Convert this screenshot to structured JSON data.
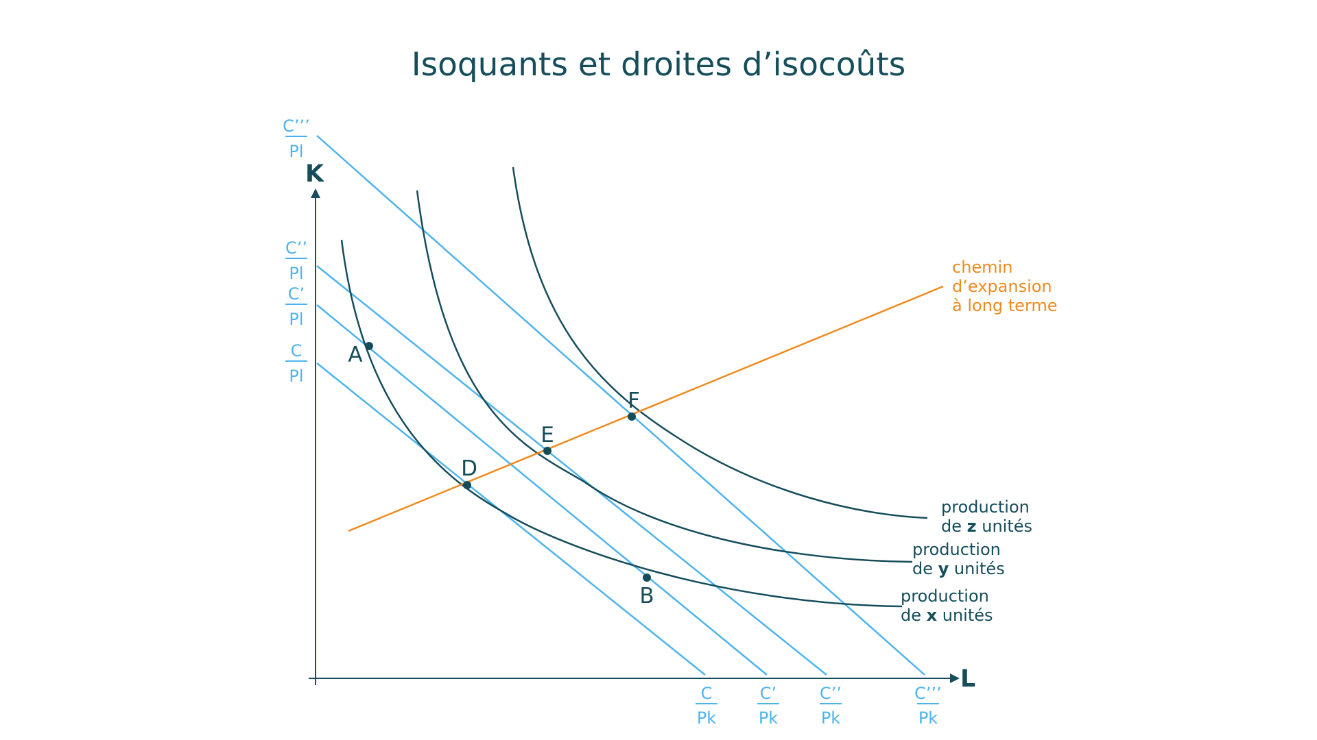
{
  "title": "Isoquants et droites d’isocoûts",
  "axes": {
    "y": "K",
    "x": "L"
  },
  "y_intercepts": [
    {
      "num": "C’’’",
      "den": "Pl"
    },
    {
      "num": "C’’",
      "den": "Pl"
    },
    {
      "num": "C’",
      "den": "Pl"
    },
    {
      "num": "C",
      "den": "Pl"
    }
  ],
  "x_intercepts": [
    {
      "num": "C",
      "den": "Pk"
    },
    {
      "num": "C’",
      "den": "Pk"
    },
    {
      "num": "C’’",
      "den": "Pk"
    },
    {
      "num": "C’’’",
      "den": "Pk"
    }
  ],
  "points": [
    "A",
    "B",
    "D",
    "E",
    "F"
  ],
  "isoquants": [
    {
      "line1": "production",
      "prefix": "de ",
      "var": "z",
      "suffix": " unités"
    },
    {
      "line1": "production",
      "prefix": "de ",
      "var": "y",
      "suffix": " unités"
    },
    {
      "line1": "production",
      "prefix": "de ",
      "var": "x",
      "suffix": " unités"
    }
  ],
  "expansion_path": {
    "lines": [
      "chemin",
      "d’expansion",
      "à long terme"
    ]
  },
  "colors": {
    "isocost": "#4db3ed",
    "isoquant": "#154d5b",
    "expansion": "#f08a1e",
    "axis": "#154d5b"
  }
}
